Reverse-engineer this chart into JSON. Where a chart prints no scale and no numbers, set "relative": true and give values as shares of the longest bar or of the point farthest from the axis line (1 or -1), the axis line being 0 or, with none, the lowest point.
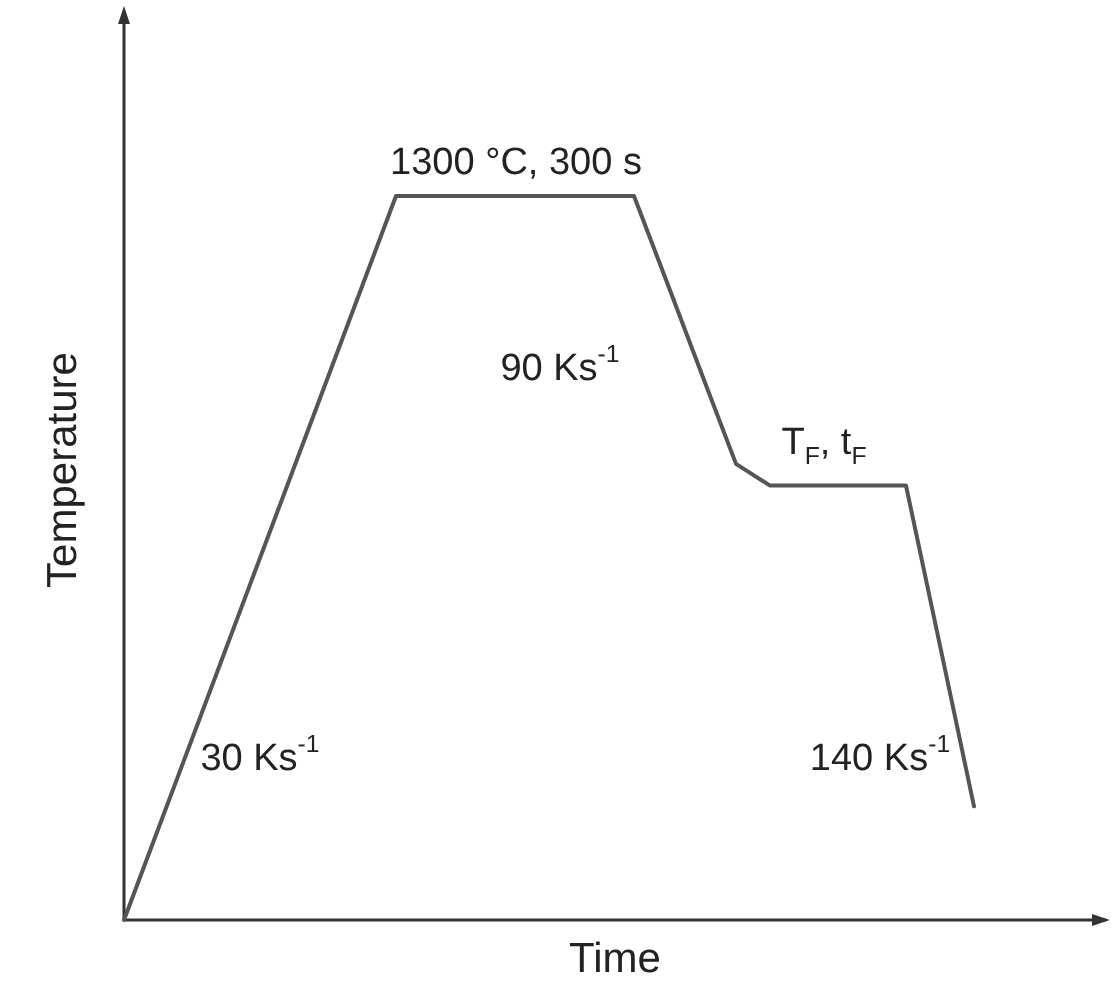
{
  "chart_data": {
    "type": "line",
    "relative": true,
    "xlabel": "Time",
    "ylabel": "Temperature",
    "categories": [
      null,
      null,
      null,
      null,
      null,
      null,
      null,
      null,
      null,
      null,
      null,
      null,
      null,
      null,
      null,
      null,
      null,
      null,
      null,
      null,
      null,
      null,
      null,
      null,
      null,
      null
    ],
    "series": [
      {
        "color": "#555555",
        "values": [
          0,
          0.125,
          0.25,
          0.375,
          0.5,
          0.625,
          0.75,
          0.875,
          1,
          1,
          1,
          1,
          1,
          1,
          1,
          1,
          0.877,
          0.753,
          0.63,
          0.6,
          0.6,
          0.6,
          0.6,
          0.6,
          0.379,
          0.157
        ]
      }
    ],
    "annotations": [
      "1300 °C, 300 s",
      "90 Ks$^{-1}$",
      "T$_{F}$, t$_{F}$",
      "30 Ks$^{-1}$",
      "140 Ks$^{-1}$"
    ]
  }
}
